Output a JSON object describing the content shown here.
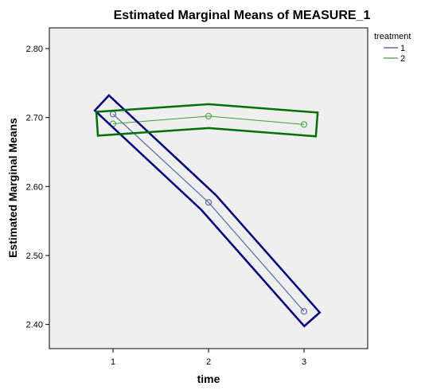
{
  "chart_data": {
    "type": "line",
    "title": "Estimated Marginal Means of MEASURE_1",
    "xlabel": "time",
    "ylabel": "Estimated Marginal Means",
    "categories": [
      "1",
      "2",
      "3"
    ],
    "ylim": [
      2.365,
      2.83
    ],
    "yticks": [
      "2.40",
      "2.50",
      "2.60",
      "2.70",
      "2.80"
    ],
    "grid": false,
    "legend_title": "treatment",
    "legend_position": "top-right",
    "series": [
      {
        "name": "1",
        "color": "#3b4f9c",
        "values": [
          2.705,
          2.577,
          2.419
        ]
      },
      {
        "name": "2",
        "color": "#33a333",
        "values": [
          2.691,
          2.702,
          2.69
        ]
      }
    ],
    "annotation_color_series_1": "#000080",
    "annotation_color_series_2": "#007000",
    "plot_background": "#efefef"
  }
}
